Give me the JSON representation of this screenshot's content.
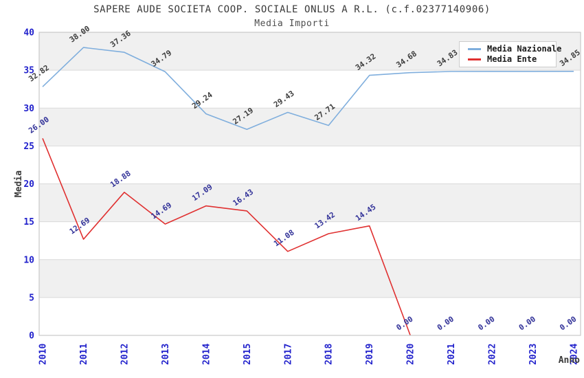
{
  "chart_data": {
    "type": "line",
    "title": "SAPERE AUDE SOCIETA COOP. SOCIALE ONLUS A R.L. (c.f.02377140906)",
    "subtitle": "Media Importi",
    "xlabel": "Anno",
    "ylabel": "Media",
    "ylim": [
      0,
      40
    ],
    "yticks": [
      0,
      5,
      10,
      15,
      20,
      25,
      30,
      35,
      40
    ],
    "grid": true,
    "legend_position": "top-right",
    "categories": [
      "2010",
      "2011",
      "2012",
      "2013",
      "2014",
      "2015",
      "2017",
      "2018",
      "2019",
      "2020",
      "2021",
      "2022",
      "2023",
      "2024"
    ],
    "series": [
      {
        "name": "Media Nazionale",
        "color": "#7faedd",
        "label_color": "#3d3d3d",
        "values": [
          32.82,
          38.0,
          37.36,
          34.79,
          29.24,
          27.19,
          29.43,
          27.71,
          34.32,
          34.68,
          34.83,
          34.84,
          34.84,
          34.85
        ],
        "labels": [
          "32.82",
          "38.00",
          "37.36",
          "34.79",
          "29.24",
          "27.19",
          "29.43",
          "27.71",
          "34.32",
          "34.68",
          "34.83",
          null,
          null,
          "34.85"
        ]
      },
      {
        "name": "Media Ente",
        "color": "#e03030",
        "label_color": "#333399",
        "values": [
          26.0,
          12.69,
          18.88,
          14.69,
          17.09,
          16.43,
          11.08,
          13.42,
          14.45,
          0.0,
          0.0,
          0.0,
          0.0,
          0.0
        ],
        "labels": [
          "26.00",
          "12.69",
          "18.88",
          "14.69",
          "17.09",
          "16.43",
          "11.08",
          "13.42",
          "14.45",
          "0.00",
          "0.00",
          "0.00",
          "0.00",
          "0.00"
        ]
      }
    ]
  },
  "colors": {
    "band_gray": "#f0f0f0",
    "band_white": "#ffffff",
    "gridline": "#d9d9d9",
    "plot_border": "#c9c9c9",
    "tick_label": "#2222cc",
    "axis_title": "#3a3a3a"
  }
}
